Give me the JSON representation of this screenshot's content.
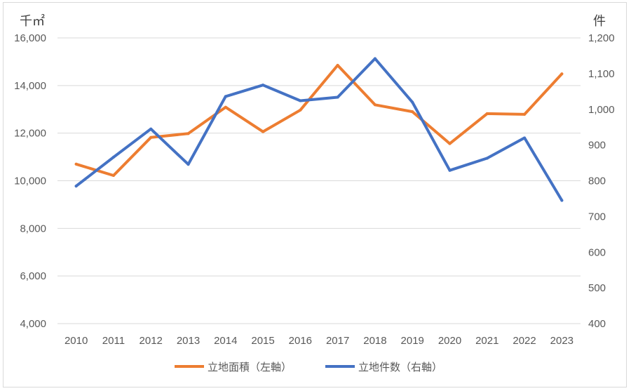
{
  "chart_data": {
    "type": "line",
    "title": "",
    "left_axis_unit": "千㎡",
    "right_axis_unit": "件",
    "categories": [
      "2010",
      "2011",
      "2012",
      "2013",
      "2014",
      "2015",
      "2016",
      "2017",
      "2018",
      "2019",
      "2020",
      "2021",
      "2022",
      "2023"
    ],
    "left_axis": {
      "min": 4000,
      "max": 16000,
      "ticks": [
        "4,000",
        "6,000",
        "8,000",
        "10,000",
        "12,000",
        "14,000",
        "16,000"
      ]
    },
    "right_axis": {
      "min": 400,
      "max": 1200,
      "ticks": [
        "400",
        "500",
        "600",
        "700",
        "800",
        "900",
        "1,000",
        "1,100",
        "1,200"
      ]
    },
    "grid": true,
    "legend_position": "bottom",
    "series": [
      {
        "name": "立地面積（左軸）",
        "axis": "left",
        "color": "#ED7D31",
        "values": [
          10700,
          10220,
          11820,
          11980,
          13090,
          12060,
          12970,
          14850,
          13190,
          12900,
          11560,
          12820,
          12790,
          14490
        ]
      },
      {
        "name": "立地件数（右軸）",
        "axis": "right",
        "color": "#4472C4",
        "values": [
          785,
          866,
          945,
          846,
          1036,
          1068,
          1024,
          1034,
          1142,
          1020,
          829,
          863,
          920,
          745
        ]
      }
    ]
  }
}
